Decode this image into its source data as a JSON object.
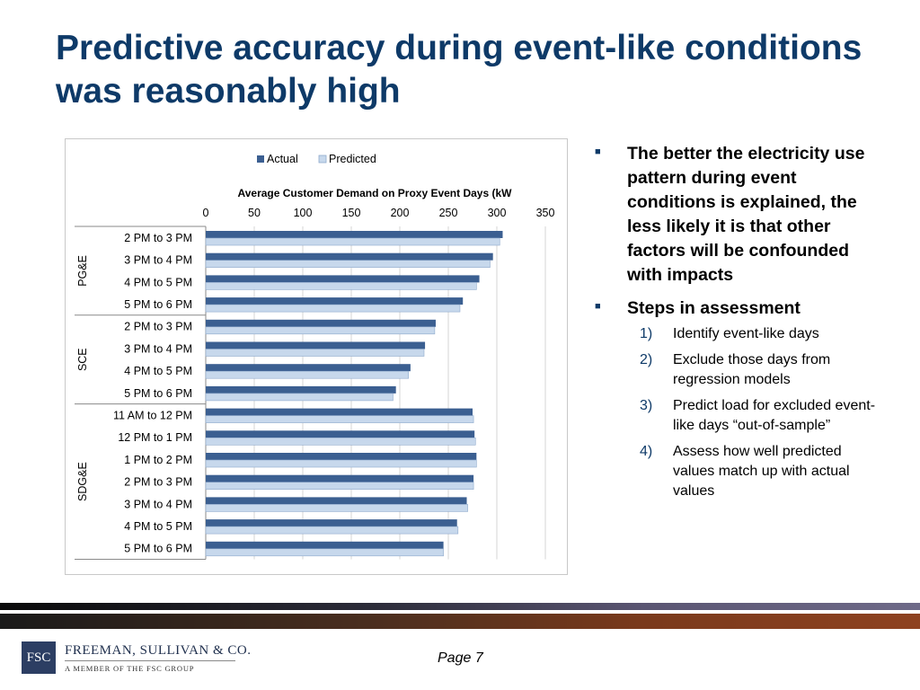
{
  "slide": {
    "title": "Predictive accuracy during event-like conditions was reasonably high",
    "page_label": "Page 7"
  },
  "bullets": [
    {
      "text": "The better the electricity use pattern during event conditions is explained, the less likely it is that other factors will be confounded with impacts"
    },
    {
      "text": "Steps in assessment"
    }
  ],
  "steps": [
    {
      "num": "1)",
      "text": "Identify event-like days"
    },
    {
      "num": "2)",
      "text": "Exclude those days from regression models"
    },
    {
      "num": "3)",
      "text": "Predict load for excluded event-like days “out-of-sample”"
    },
    {
      "num": "4)",
      "text": "Assess how well predicted values match up with actual values"
    }
  ],
  "logo": {
    "mark": "FSC",
    "name": "FREEMAN, SULLIVAN & CO.",
    "tagline": "A MEMBER OF THE FSC GROUP"
  },
  "chart_data": {
    "type": "bar",
    "orientation": "horizontal",
    "title": "Average Customer  Demand on Proxy Event Days (kW",
    "xlim": [
      0,
      350
    ],
    "ticks": [
      0,
      50,
      100,
      150,
      200,
      250,
      300,
      350
    ],
    "legend_position": "top",
    "grid": true,
    "colors": {
      "actual": "#3b5f91",
      "predicted": "#c7d8ec",
      "predicted_border": "#8faacc"
    },
    "groups": [
      {
        "name": "PG&E",
        "start": 0,
        "count": 4
      },
      {
        "name": "SCE",
        "start": 4,
        "count": 4
      },
      {
        "name": "SDG&E",
        "start": 8,
        "count": 7
      }
    ],
    "categories": [
      "2 PM to 3 PM",
      "3 PM to 4 PM",
      "4 PM to 5 PM",
      "5 PM to 6 PM",
      "2 PM to 3 PM",
      "3 PM to 4 PM",
      "4 PM to 5 PM",
      "5 PM to 6 PM",
      "11 AM to 12 PM",
      "12 PM to 1 PM",
      "1 PM to 2 PM",
      "2 PM to 3 PM",
      "3 PM to 4 PM",
      "4 PM to 5 PM",
      "5 PM to 6 PM"
    ],
    "series": [
      {
        "name": "Actual",
        "values": [
          306,
          296,
          282,
          265,
          237,
          226,
          211,
          196,
          275,
          277,
          279,
          276,
          269,
          259,
          245
        ]
      },
      {
        "name": "Predicted",
        "values": [
          303,
          293,
          279,
          262,
          236,
          225,
          209,
          193,
          276,
          278,
          279,
          276,
          270,
          260,
          245
        ]
      }
    ]
  }
}
